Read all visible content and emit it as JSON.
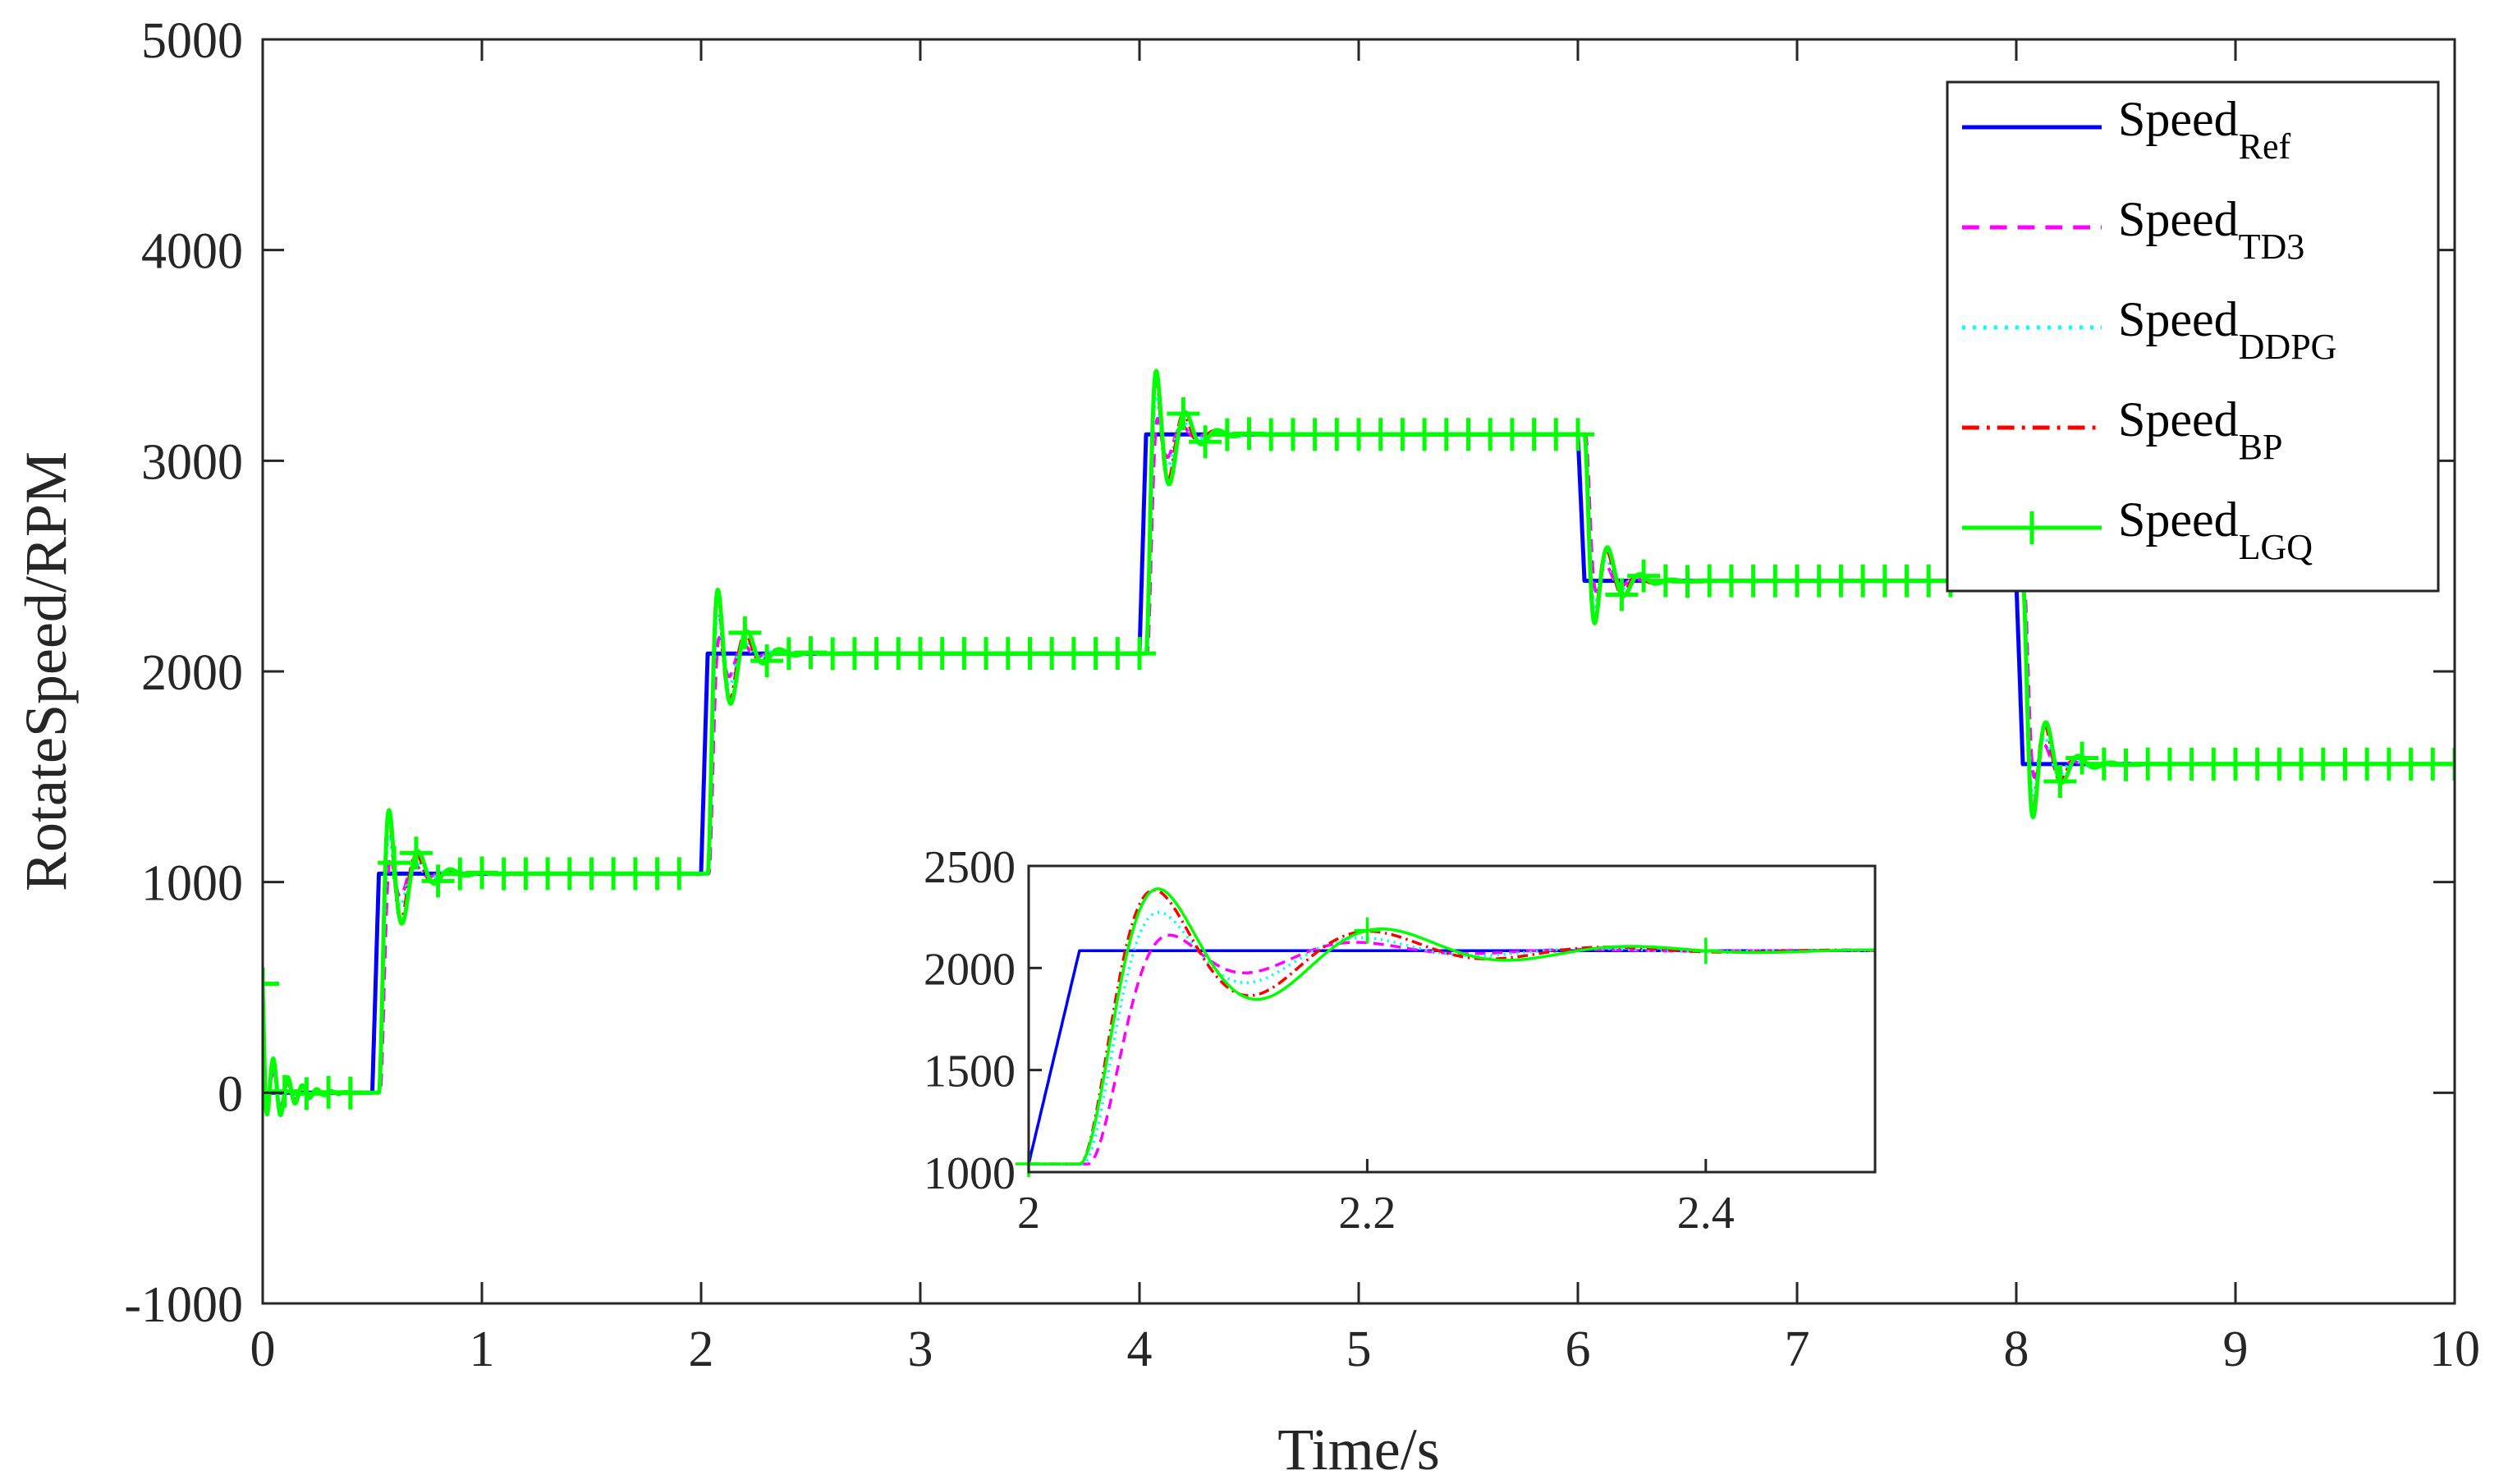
{
  "chart_data": [
    {
      "type": "line",
      "id": "main",
      "title": "",
      "xlabel": "Time/s",
      "ylabel": "RotateSpeed/RPM",
      "xlim": [
        0,
        10
      ],
      "ylim": [
        -1000,
        5000
      ],
      "xticks": [
        0,
        1,
        2,
        3,
        4,
        5,
        6,
        7,
        8,
        9,
        10
      ],
      "yticks": [
        -1000,
        0,
        1000,
        2000,
        3000,
        4000,
        5000
      ],
      "xtick_labels": [
        "0",
        "1",
        "2",
        "3",
        "4",
        "5",
        "6",
        "7",
        "8",
        "9",
        "10"
      ],
      "ytick_labels": [
        "-1000",
        "0",
        "1000",
        "2000",
        "3000",
        "4000",
        "5000"
      ],
      "grid": false,
      "legend_position": "top-right",
      "legend": [
        {
          "key": "ref",
          "base": "Speed",
          "sub": "Ref",
          "color": "#0000ff",
          "style": "solid"
        },
        {
          "key": "td3",
          "base": "Speed",
          "sub": "TD3",
          "color": "#ff00ff",
          "style": "dashed"
        },
        {
          "key": "ddpg",
          "base": "Speed",
          "sub": "DDPG",
          "color": "#00ffff",
          "style": "dotted"
        },
        {
          "key": "bp",
          "base": "Speed",
          "sub": "BP",
          "color": "#ff0000",
          "style": "dashdot"
        },
        {
          "key": "lgq",
          "base": "Speed",
          "sub": "LGQ",
          "color": "#00ff00",
          "style": "solid-plus"
        }
      ],
      "steps": [
        {
          "t": 0.0,
          "from": 0,
          "to": 0
        },
        {
          "t": 0.5,
          "from": 0,
          "to": 1040
        },
        {
          "t": 2.0,
          "from": 1040,
          "to": 2085
        },
        {
          "t": 4.0,
          "from": 2085,
          "to": 3125
        },
        {
          "t": 6.0,
          "from": 3125,
          "to": 2430
        },
        {
          "t": 8.0,
          "from": 2430,
          "to": 1560
        }
      ],
      "ref_ramp_time": 0.03,
      "series_params": [
        {
          "key": "td3",
          "delay": 0.035,
          "tau": 0.03,
          "overshoot": 0.2,
          "omega": 50,
          "zeta": 0.3
        },
        {
          "key": "ddpg",
          "delay": 0.032,
          "tau": 0.028,
          "overshoot": 0.26,
          "omega": 48,
          "zeta": 0.28
        },
        {
          "key": "bp",
          "delay": 0.03,
          "tau": 0.028,
          "overshoot": 0.33,
          "omega": 46,
          "zeta": 0.26
        },
        {
          "key": "lgq",
          "delay": 0.03,
          "tau": 0.03,
          "overshoot": 0.34,
          "omega": 44,
          "zeta": 0.25
        }
      ],
      "initial_transient": {
        "peak": 450,
        "dip": -230
      },
      "lgq_marker_times": [
        0,
        0.1,
        0.2,
        0.3,
        0.4,
        0.6,
        0.7,
        0.8,
        0.9,
        1.0,
        1.1,
        1.2,
        1.3,
        1.4,
        1.5,
        1.6,
        1.7,
        1.8,
        1.9,
        2.2,
        2.3,
        2.4,
        2.5,
        2.6,
        2.7,
        2.8,
        2.9,
        3.0,
        3.1,
        3.2,
        3.3,
        3.4,
        3.5,
        3.6,
        3.7,
        3.8,
        3.9,
        4.0,
        4.2,
        4.3,
        4.4,
        4.5,
        4.6,
        4.7,
        4.8,
        4.9,
        5.0,
        5.1,
        5.2,
        5.3,
        5.4,
        5.5,
        5.6,
        5.7,
        5.8,
        5.9,
        6.0,
        6.2,
        6.3,
        6.4,
        6.5,
        6.6,
        6.7,
        6.8,
        6.9,
        7.0,
        7.1,
        7.2,
        7.3,
        7.4,
        7.5,
        7.6,
        7.7,
        8.2,
        8.3,
        8.4,
        8.5,
        8.6,
        8.7,
        8.8,
        8.9,
        9.0,
        9.1,
        9.2,
        9.3,
        9.4,
        9.5,
        9.6,
        9.7,
        9.8,
        9.9,
        10.0
      ]
    },
    {
      "type": "line",
      "id": "inset",
      "title": "",
      "xlabel": "",
      "ylabel": "",
      "xlim": [
        2,
        2.5
      ],
      "ylim": [
        1000,
        2500
      ],
      "xticks": [
        2,
        2.2,
        2.4
      ],
      "yticks": [
        1000,
        1500,
        2000,
        2500
      ],
      "xtick_labels": [
        "2",
        "2.2",
        "2.4"
      ],
      "ytick_labels": [
        "1000",
        "1500",
        "2000",
        "2500"
      ],
      "grid": false,
      "zoom_of": "main",
      "lgq_marker_times": [
        2.0,
        2.2,
        2.4
      ]
    }
  ]
}
